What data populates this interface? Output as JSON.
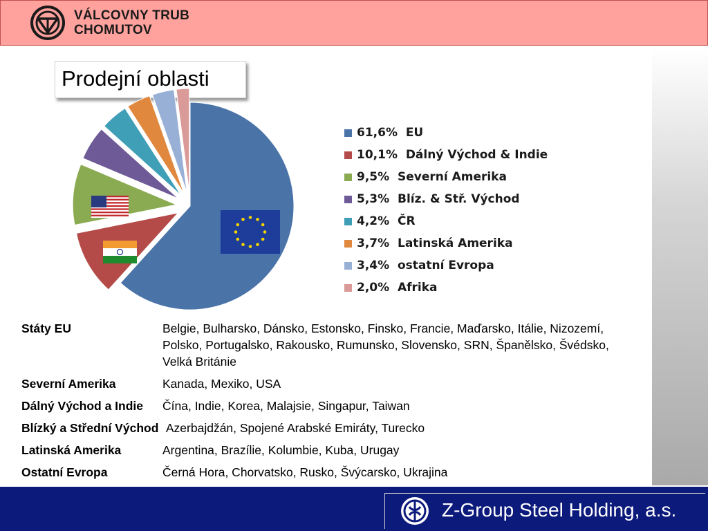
{
  "header": {
    "company_line1": "VÁLCOVNY TRUB",
    "company_line2": "CHOMUTOV"
  },
  "title": "Prodejní oblasti",
  "chart_data": {
    "type": "pie",
    "slices": [
      {
        "label": "61,6%  EU",
        "value": 61.6,
        "color": "#4a73a8"
      },
      {
        "label": "10,1%  Dálný Východ & Indie",
        "value": 10.1,
        "color": "#b44b48"
      },
      {
        "label": "9,5%  Severní Amerika",
        "value": 9.5,
        "color": "#8aab52"
      },
      {
        "label": "5,3%  Blíz. & Stř. Východ",
        "value": 5.3,
        "color": "#6e5a96"
      },
      {
        "label": "4,2%  ČR",
        "value": 4.2,
        "color": "#3f9fb6"
      },
      {
        "label": "3,7%  Latinská Amerika",
        "value": 3.7,
        "color": "#e0883d"
      },
      {
        "label": "3,4%  ostatní Evropa",
        "value": 3.4,
        "color": "#98b0d6"
      },
      {
        "label": "2,0%  Afrika",
        "value": 2.0,
        "color": "#d99a98"
      }
    ],
    "legend_position": "right",
    "exploded": true
  },
  "regions": [
    {
      "name": "Státy EU",
      "countries": "Belgie, Bulharsko, Dánsko, Estonsko, Finsko, Francie, Maďarsko, Itálie, Nizozemí, Polsko, Portugalsko, Rakousko, Rumunsko, Slovensko, SRN, Španělsko, Švédsko, Velká Británie"
    },
    {
      "name": "Severní Amerika",
      "countries": "Kanada, Mexiko, USA"
    },
    {
      "name": "Dálný Východ a Indie",
      "countries": "Čína, Indie, Korea, Malajsie, Singapur, Taiwan"
    },
    {
      "name": "Blízký a Střední Východ",
      "countries": " Azerbajdžán, Spojené Arabské Emiráty, Turecko"
    },
    {
      "name": "Latinská Amerika",
      "countries": "Argentina, Brazílie, Kolumbie, Kuba, Urugay"
    },
    {
      "name": "Ostatní Evropa",
      "countries": "Černá Hora, Chorvatsko, Rusko, Švýcarsko, Ukrajina"
    }
  ],
  "footer": {
    "text": "Z-Group Steel Holding, a.s."
  }
}
